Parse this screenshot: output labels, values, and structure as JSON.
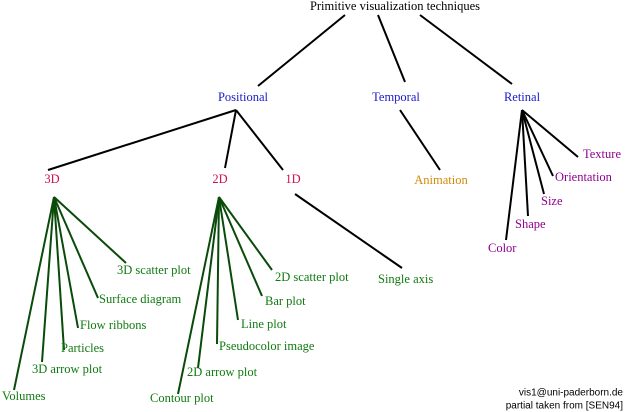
{
  "title": "Primitive visualization techniques",
  "nodes": [
    {
      "label": "Positional"
    },
    {
      "label": "Temporal"
    },
    {
      "label": "Retinal"
    },
    {
      "label": "3D"
    },
    {
      "label": "2D"
    },
    {
      "label": "1D"
    },
    {
      "label": "Animation"
    },
    {
      "label": "Texture"
    },
    {
      "label": "Orientation"
    },
    {
      "label": "Size"
    },
    {
      "label": "Shape"
    },
    {
      "label": "Color"
    },
    {
      "label": "3D scatter plot"
    },
    {
      "label": "Surface diagram"
    },
    {
      "label": "Flow ribbons"
    },
    {
      "label": "Particles"
    },
    {
      "label": "3D arrow plot"
    },
    {
      "label": "Volumes"
    },
    {
      "label": "2D scatter plot"
    },
    {
      "label": "Bar plot"
    },
    {
      "label": "Line plot"
    },
    {
      "label": "Pseudocolor image"
    },
    {
      "label": "2D arrow plot"
    },
    {
      "label": "Contour plot"
    },
    {
      "label": "Single axis"
    }
  ],
  "footer": {
    "email": "vis1@uni-paderborn.de",
    "source": "partial taken from [SEN94]"
  }
}
